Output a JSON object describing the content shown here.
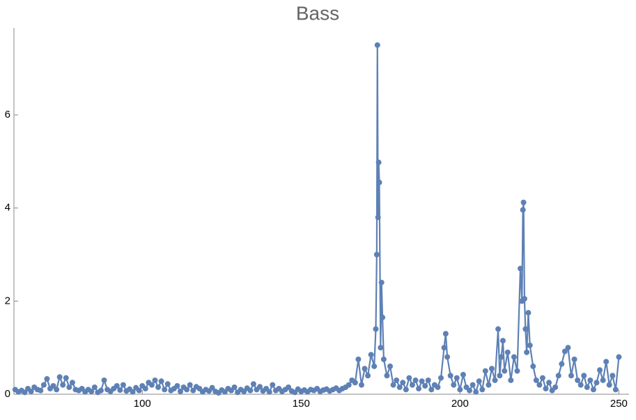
{
  "chart_data": {
    "type": "line",
    "title": "Bass",
    "color": "#5e81b5",
    "x": [
      60,
      61,
      62,
      63,
      64,
      65,
      66,
      67,
      68,
      69,
      70,
      71,
      72,
      73,
      74,
      75,
      76,
      77,
      78,
      79,
      80,
      81,
      82,
      83,
      84,
      85,
      86,
      87,
      88,
      89,
      90,
      91,
      92,
      93,
      94,
      95,
      96,
      97,
      98,
      99,
      100,
      101,
      102,
      103,
      104,
      105,
      106,
      107,
      108,
      109,
      110,
      111,
      112,
      113,
      114,
      115,
      116,
      117,
      118,
      119,
      120,
      121,
      122,
      123,
      124,
      125,
      126,
      127,
      128,
      129,
      130,
      131,
      132,
      133,
      134,
      135,
      136,
      137,
      138,
      139,
      140,
      141,
      142,
      143,
      144,
      145,
      146,
      147,
      148,
      149,
      150,
      151,
      152,
      153,
      154,
      155,
      156,
      157,
      158,
      159,
      160,
      161,
      162,
      163,
      164,
      165,
      166,
      167,
      168,
      169,
      170,
      171,
      172,
      173,
      173.5,
      173.8,
      174,
      174.2,
      174.4,
      174.6,
      175,
      175.3,
      175.6,
      176,
      177,
      178,
      179,
      180,
      181,
      182,
      183,
      184,
      185,
      186,
      187,
      188,
      189,
      190,
      191,
      192,
      193,
      194,
      195,
      195.5,
      196,
      197,
      198,
      199,
      200,
      201,
      202,
      203,
      204,
      205,
      206,
      207,
      208,
      209,
      210,
      211,
      212,
      212.5,
      213,
      213.5,
      214,
      215,
      216,
      217,
      218,
      219,
      219.5,
      219.8,
      220,
      220.3,
      220.6,
      221,
      221.5,
      222,
      223,
      224,
      225,
      226,
      227,
      228,
      229,
      230,
      231,
      232,
      233,
      234,
      235,
      236,
      237,
      238,
      239,
      240,
      241,
      242,
      243,
      244,
      245,
      246,
      247,
      248,
      249,
      250
    ],
    "values": [
      0.1,
      0.05,
      0.08,
      0.04,
      0.12,
      0.06,
      0.15,
      0.1,
      0.08,
      0.2,
      0.33,
      0.12,
      0.18,
      0.1,
      0.37,
      0.2,
      0.35,
      0.15,
      0.25,
      0.1,
      0.08,
      0.12,
      0.05,
      0.1,
      0.06,
      0.15,
      0.04,
      0.08,
      0.3,
      0.1,
      0.06,
      0.12,
      0.18,
      0.09,
      0.2,
      0.07,
      0.11,
      0.05,
      0.14,
      0.08,
      0.18,
      0.12,
      0.25,
      0.2,
      0.3,
      0.15,
      0.28,
      0.1,
      0.22,
      0.08,
      0.12,
      0.18,
      0.06,
      0.15,
      0.1,
      0.2,
      0.08,
      0.16,
      0.12,
      0.05,
      0.1,
      0.07,
      0.14,
      0.06,
      0.03,
      0.09,
      0.05,
      0.12,
      0.08,
      0.15,
      0.04,
      0.1,
      0.06,
      0.13,
      0.08,
      0.22,
      0.1,
      0.16,
      0.07,
      0.12,
      0.05,
      0.2,
      0.08,
      0.12,
      0.06,
      0.1,
      0.15,
      0.07,
      0.04,
      0.11,
      0.06,
      0.09,
      0.05,
      0.1,
      0.08,
      0.12,
      0.06,
      0.09,
      0.11,
      0.07,
      0.1,
      0.13,
      0.08,
      0.12,
      0.15,
      0.2,
      0.3,
      0.25,
      0.75,
      0.2,
      0.55,
      0.4,
      0.85,
      0.6,
      1.4,
      3.0,
      7.5,
      3.8,
      4.98,
      4.55,
      1.0,
      2.4,
      1.65,
      0.75,
      0.4,
      0.6,
      0.2,
      0.3,
      0.15,
      0.25,
      0.1,
      0.35,
      0.2,
      0.3,
      0.12,
      0.28,
      0.18,
      0.3,
      0.1,
      0.2,
      0.15,
      0.35,
      1.0,
      1.3,
      0.8,
      0.4,
      0.2,
      0.35,
      0.1,
      0.42,
      0.15,
      0.08,
      0.2,
      0.05,
      0.28,
      0.1,
      0.5,
      0.2,
      0.55,
      0.3,
      1.4,
      0.4,
      0.8,
      1.15,
      0.5,
      0.9,
      0.3,
      0.8,
      0.5,
      2.7,
      2.0,
      3.96,
      4.12,
      2.05,
      1.4,
      0.9,
      1.75,
      1.05,
      0.6,
      0.3,
      0.2,
      0.35,
      0.12,
      0.25,
      0.08,
      0.15,
      0.4,
      0.65,
      0.92,
      1.0,
      0.4,
      0.75,
      0.3,
      0.2,
      0.4,
      0.15,
      0.3,
      0.1,
      0.25,
      0.52,
      0.3,
      0.7,
      0.2,
      0.4,
      0.1,
      0.8
    ],
    "xlim": [
      59.6,
      253.2
    ],
    "ylim": [
      0,
      7.87
    ],
    "xticks": [
      100,
      150,
      200,
      250
    ],
    "yticks": [
      0,
      2,
      4,
      6
    ]
  }
}
